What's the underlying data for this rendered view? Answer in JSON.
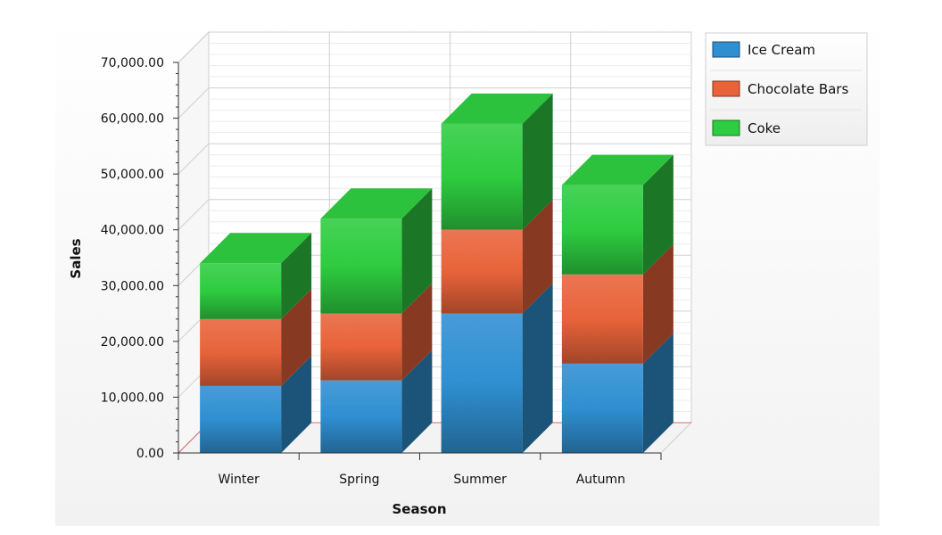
{
  "chart_data": {
    "type": "bar",
    "stacked": true,
    "three_d": true,
    "categories": [
      "Winter",
      "Spring",
      "Summer",
      "Autumn"
    ],
    "series": [
      {
        "name": "Ice Cream",
        "values": [
          12000,
          13000,
          25000,
          16000
        ],
        "color": "#2f8fd1"
      },
      {
        "name": "Chocolate Bars",
        "values": [
          12000,
          12000,
          15000,
          16000
        ],
        "color": "#e8633a"
      },
      {
        "name": "Coke",
        "values": [
          10000,
          17000,
          19000,
          16000
        ],
        "color": "#2ecc40"
      }
    ],
    "xlabel": "Season",
    "ylabel": "Sales",
    "ylim": [
      0,
      70000
    ],
    "yticks": [
      "0.00",
      "10,000.00",
      "20,000.00",
      "30,000.00",
      "40,000.00",
      "50,000.00",
      "60,000.00",
      "70,000.00"
    ],
    "grid": true,
    "legend": "top-right"
  }
}
